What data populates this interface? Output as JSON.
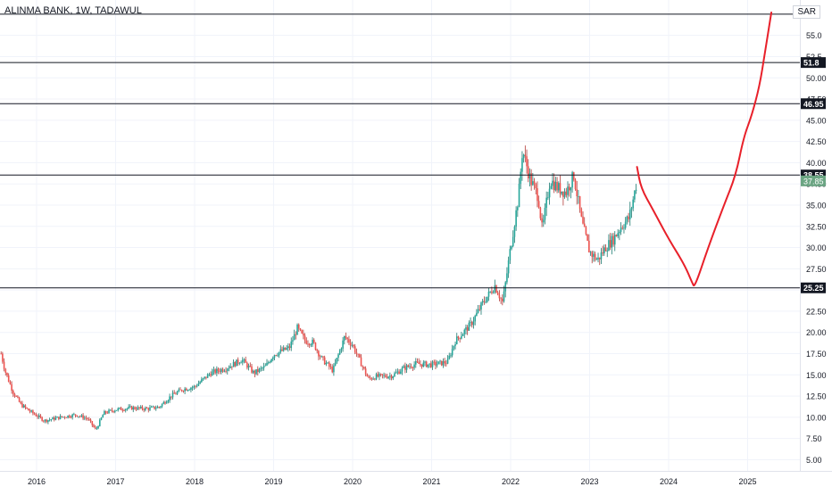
{
  "header": {
    "title": "ALINMA BANK, 1W, TADAWUL",
    "currency": "SAR"
  },
  "chart_data": {
    "type": "candlestick",
    "title": "ALINMA BANK, 1W, TADAWUL",
    "ylabel": "",
    "xlabel": "",
    "ylim": [
      3.5,
      57.5
    ],
    "y_ticks": [
      "5.00",
      "7.50",
      "10.00",
      "12.50",
      "15.00",
      "17.50",
      "20.00",
      "22.50",
      "25.00",
      "27.50",
      "30.00",
      "32.50",
      "35.00",
      "37.50",
      "40.00",
      "42.50",
      "45.00",
      "47.50",
      "50.00",
      "52.5",
      "55.0"
    ],
    "x_ticks": [
      "2016",
      "2017",
      "2018",
      "2019",
      "2020",
      "2021",
      "2022",
      "2023",
      "2024",
      "2025"
    ],
    "horizontal_levels": [
      {
        "value": 57.5,
        "label": ""
      },
      {
        "value": 51.8,
        "label": "51.8"
      },
      {
        "value": 46.95,
        "label": "46.95"
      },
      {
        "value": 38.55,
        "label": "38.55"
      },
      {
        "value": 25.25,
        "label": "25.25"
      }
    ],
    "last_price": {
      "value": 37.85,
      "label": "37.85"
    },
    "price_path": [
      [
        2015.55,
        17.5
      ],
      [
        2015.6,
        15.5
      ],
      [
        2015.7,
        13.0
      ],
      [
        2015.8,
        11.5
      ],
      [
        2015.9,
        10.8
      ],
      [
        2016.0,
        10.2
      ],
      [
        2016.1,
        9.6
      ],
      [
        2016.3,
        10.0
      ],
      [
        2016.5,
        10.3
      ],
      [
        2016.65,
        9.8
      ],
      [
        2016.75,
        8.5
      ],
      [
        2016.85,
        10.5
      ],
      [
        2017.0,
        10.9
      ],
      [
        2017.2,
        11.1
      ],
      [
        2017.4,
        11.0
      ],
      [
        2017.55,
        11.2
      ],
      [
        2017.7,
        12.5
      ],
      [
        2017.85,
        13.3
      ],
      [
        2018.0,
        13.6
      ],
      [
        2018.2,
        15.2
      ],
      [
        2018.4,
        15.8
      ],
      [
        2018.6,
        16.8
      ],
      [
        2018.75,
        15.2
      ],
      [
        2018.9,
        16.0
      ],
      [
        2019.0,
        17.4
      ],
      [
        2019.2,
        18.2
      ],
      [
        2019.3,
        20.5
      ],
      [
        2019.4,
        19.0
      ],
      [
        2019.5,
        18.8
      ],
      [
        2019.6,
        17.0
      ],
      [
        2019.75,
        15.5
      ],
      [
        2019.9,
        19.5
      ],
      [
        2020.0,
        18.5
      ],
      [
        2020.1,
        16.5
      ],
      [
        2020.2,
        14.5
      ],
      [
        2020.3,
        14.8
      ],
      [
        2020.5,
        14.9
      ],
      [
        2020.65,
        15.8
      ],
      [
        2020.8,
        16.3
      ],
      [
        2021.0,
        16.2
      ],
      [
        2021.2,
        16.5
      ],
      [
        2021.3,
        19.0
      ],
      [
        2021.5,
        21.0
      ],
      [
        2021.65,
        23.5
      ],
      [
        2021.8,
        25.5
      ],
      [
        2021.9,
        23.5
      ],
      [
        2022.0,
        30.0
      ],
      [
        2022.1,
        36.0
      ],
      [
        2022.15,
        41.5
      ],
      [
        2022.25,
        38.0
      ],
      [
        2022.35,
        36.0
      ],
      [
        2022.4,
        32.0
      ],
      [
        2022.5,
        38.0
      ],
      [
        2022.6,
        37.0
      ],
      [
        2022.7,
        36.5
      ],
      [
        2022.8,
        38.5
      ],
      [
        2022.9,
        33.0
      ],
      [
        2023.0,
        29.5
      ],
      [
        2023.1,
        28.5
      ],
      [
        2023.2,
        30.0
      ],
      [
        2023.3,
        31.0
      ],
      [
        2023.4,
        32.5
      ],
      [
        2023.5,
        33.5
      ],
      [
        2023.6,
        37.85
      ]
    ],
    "projection_path": [
      [
        2023.6,
        39.5
      ],
      [
        2023.65,
        37.0
      ],
      [
        2023.8,
        34.5
      ],
      [
        2024.0,
        31.0
      ],
      [
        2024.2,
        28.0
      ],
      [
        2024.3,
        25.8
      ],
      [
        2024.33,
        25.3
      ],
      [
        2024.5,
        30.0
      ],
      [
        2024.7,
        35.0
      ],
      [
        2024.85,
        38.5
      ],
      [
        2024.95,
        43.0
      ],
      [
        2025.05,
        45.5
      ],
      [
        2025.15,
        49.0
      ],
      [
        2025.22,
        53.0
      ],
      [
        2025.3,
        57.7
      ]
    ]
  }
}
